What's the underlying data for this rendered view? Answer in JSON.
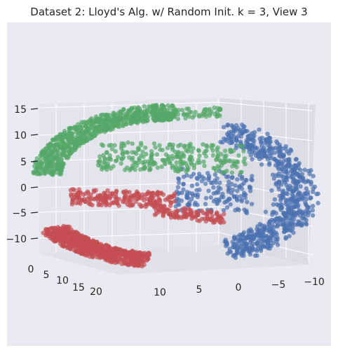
{
  "chart_data": {
    "type": "scatter",
    "title": "Dataset 2: Lloyd's Alg. w/ Random Init. k = 3, View 3",
    "projection": "3d",
    "xlabel": "",
    "ylabel": "",
    "zlabel": "",
    "axes": {
      "x_ticks": [
        "10",
        "5",
        "0",
        "−5",
        "−10"
      ],
      "y_ticks": [
        "0",
        "5",
        "10",
        "15",
        "20"
      ],
      "z_ticks": [
        "15",
        "10",
        "5",
        "0",
        "−5",
        "−10"
      ],
      "xlim": [
        -11,
        14
      ],
      "ylim": [
        0,
        21
      ],
      "zlim": [
        -11,
        16
      ]
    },
    "grid": true,
    "legend": "none",
    "series": [
      {
        "color": "#4c72b0",
        "cluster": 1,
        "description_points": "blue cluster, right/inner part of swiss roll"
      },
      {
        "color": "#c44e52",
        "cluster": 2,
        "description_points": "red cluster, lower outer arc"
      },
      {
        "color": "#55a868",
        "cluster": 3,
        "description_points": "green cluster, upper outer arc"
      }
    ],
    "colors": {
      "background": "#eaeaf2",
      "pane": "#e6e6ef",
      "grid": "#ffffff"
    }
  }
}
